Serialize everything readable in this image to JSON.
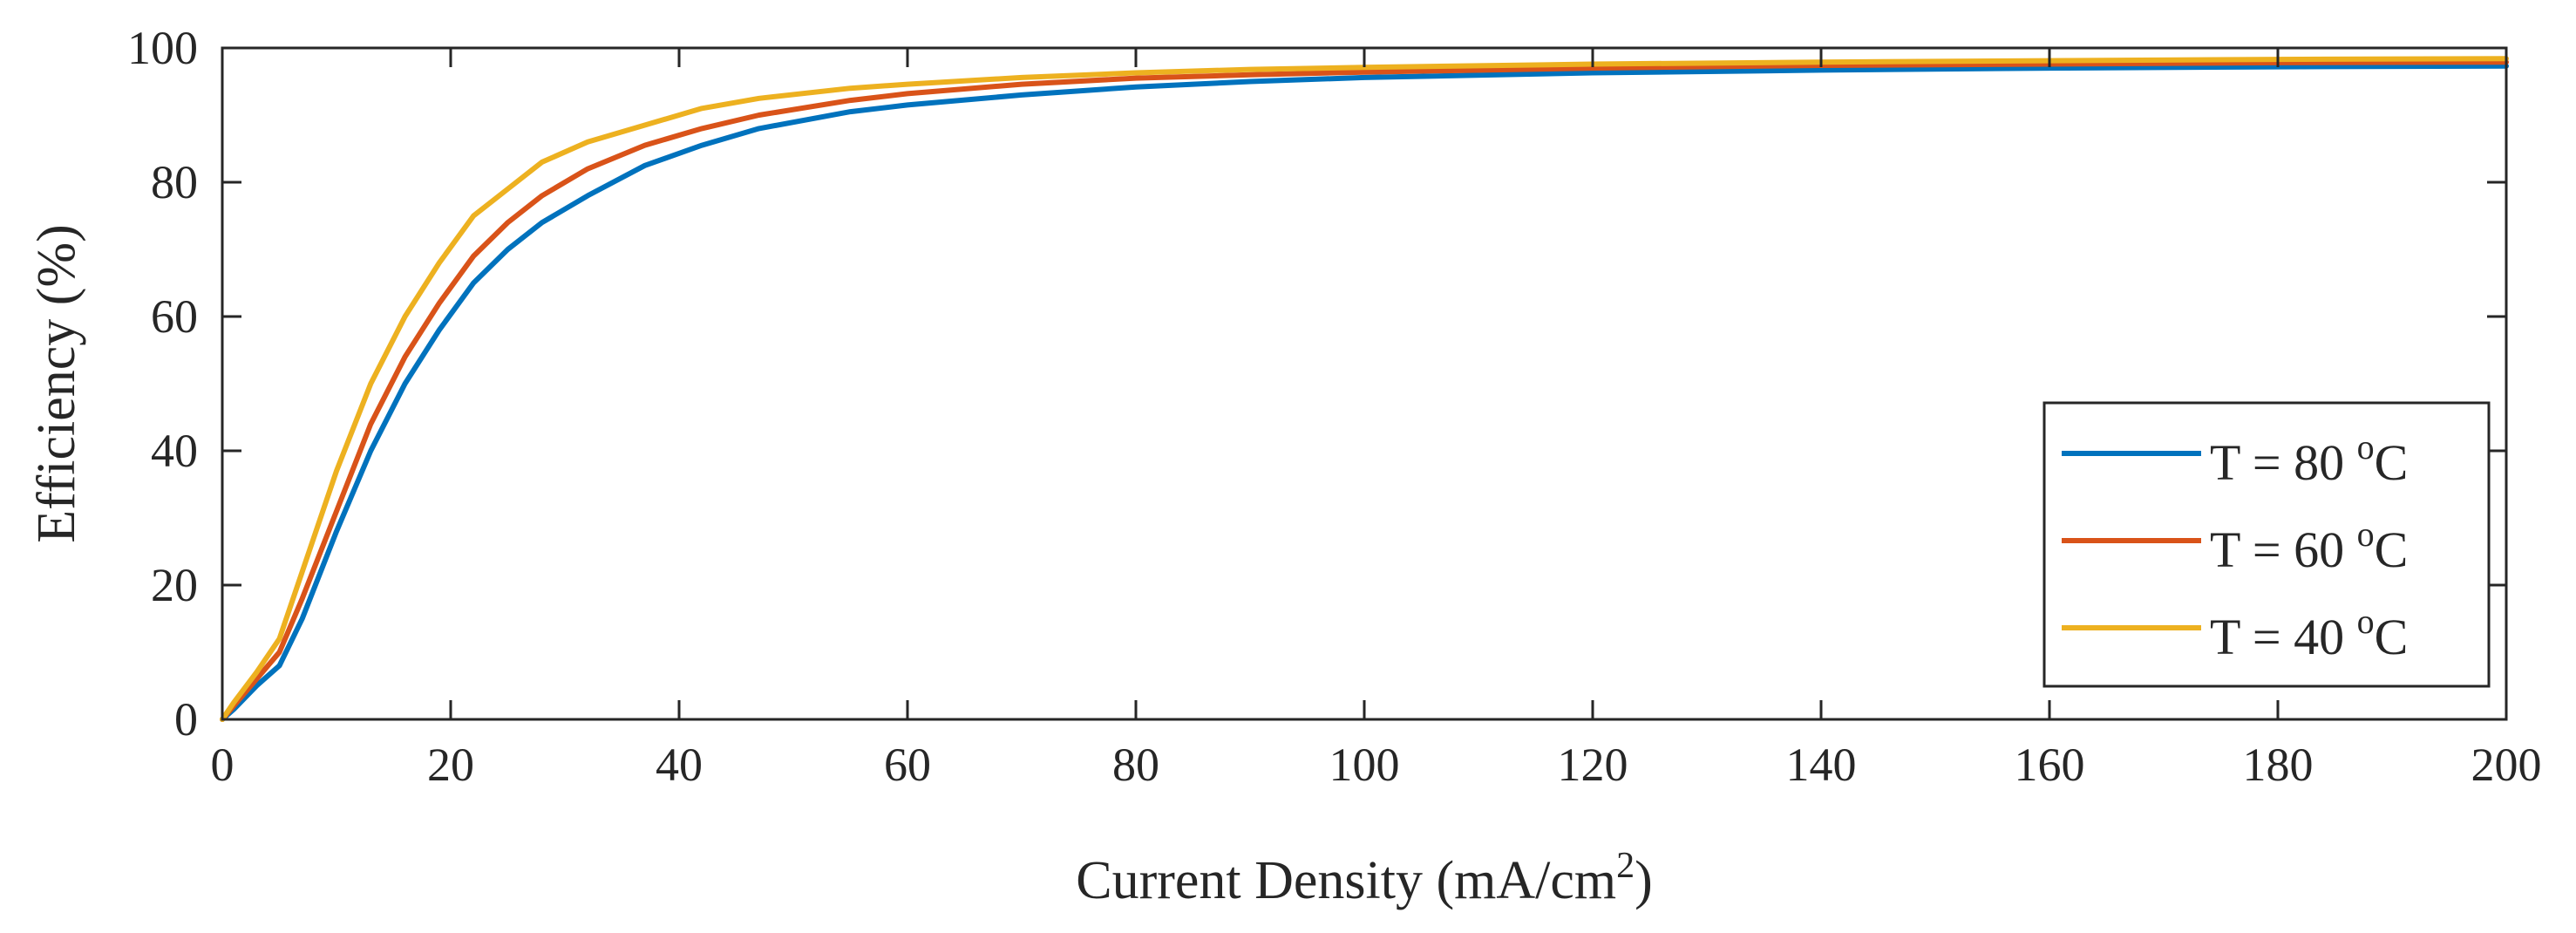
{
  "chart_data": {
    "type": "line",
    "title": "",
    "xlabel": "Current Density (mA/cm",
    "xlabel_superscript": "2",
    "xlabel_suffix": ")",
    "ylabel": "Efficiency (%)",
    "xlim": [
      0,
      200
    ],
    "ylim": [
      0,
      100
    ],
    "xticks": [
      0,
      20,
      40,
      60,
      80,
      100,
      120,
      140,
      160,
      180,
      200
    ],
    "yticks": [
      0,
      20,
      40,
      60,
      80,
      100
    ],
    "grid": false,
    "legend_position": "lower-right",
    "series": [
      {
        "name": "T = 80 °C",
        "label_main": "T = 80 ",
        "label_sup": "o",
        "label_unit": "C",
        "color": "#0072BD",
        "x": [
          0,
          1,
          3,
          5,
          7,
          10,
          13,
          16,
          19,
          22,
          25,
          28,
          32,
          37,
          42,
          47,
          55,
          60,
          70,
          80,
          90,
          100,
          120,
          140,
          160,
          180,
          200
        ],
        "y": [
          0,
          1.5,
          5,
          8,
          15,
          28,
          40,
          50,
          58,
          65,
          70,
          74,
          78,
          82.5,
          85.5,
          88,
          90.5,
          91.5,
          93,
          94.2,
          95,
          95.6,
          96.3,
          96.7,
          97,
          97.2,
          97.3
        ]
      },
      {
        "name": "T = 60 °C",
        "label_main": "T = 60 ",
        "label_sup": "o",
        "label_unit": "C",
        "color": "#D95319",
        "x": [
          0,
          1,
          3,
          5,
          7,
          10,
          13,
          16,
          19,
          22,
          25,
          28,
          32,
          37,
          42,
          47,
          55,
          60,
          70,
          80,
          90,
          100,
          120,
          140,
          160,
          180,
          200
        ],
        "y": [
          0,
          2,
          6,
          10,
          18,
          31,
          44,
          54,
          62,
          69,
          74,
          78,
          82,
          85.5,
          88,
          90,
          92.2,
          93.2,
          94.6,
          95.5,
          96,
          96.4,
          97,
          97.4,
          97.6,
          97.8,
          97.9
        ]
      },
      {
        "name": "T = 40 °C",
        "label_main": "T = 40 ",
        "label_sup": "o",
        "label_unit": "C",
        "color": "#EDB120",
        "x": [
          0,
          1,
          3,
          5,
          7,
          10,
          13,
          16,
          19,
          22,
          25,
          28,
          32,
          37,
          42,
          47,
          55,
          60,
          70,
          80,
          90,
          100,
          120,
          140,
          160,
          180,
          200
        ],
        "y": [
          0,
          2.5,
          7,
          12,
          22,
          37,
          50,
          60,
          68,
          75,
          79,
          83,
          86,
          88.5,
          91,
          92.5,
          94,
          94.6,
          95.6,
          96.3,
          96.8,
          97.1,
          97.6,
          97.9,
          98.1,
          98.3,
          98.4
        ]
      }
    ]
  }
}
